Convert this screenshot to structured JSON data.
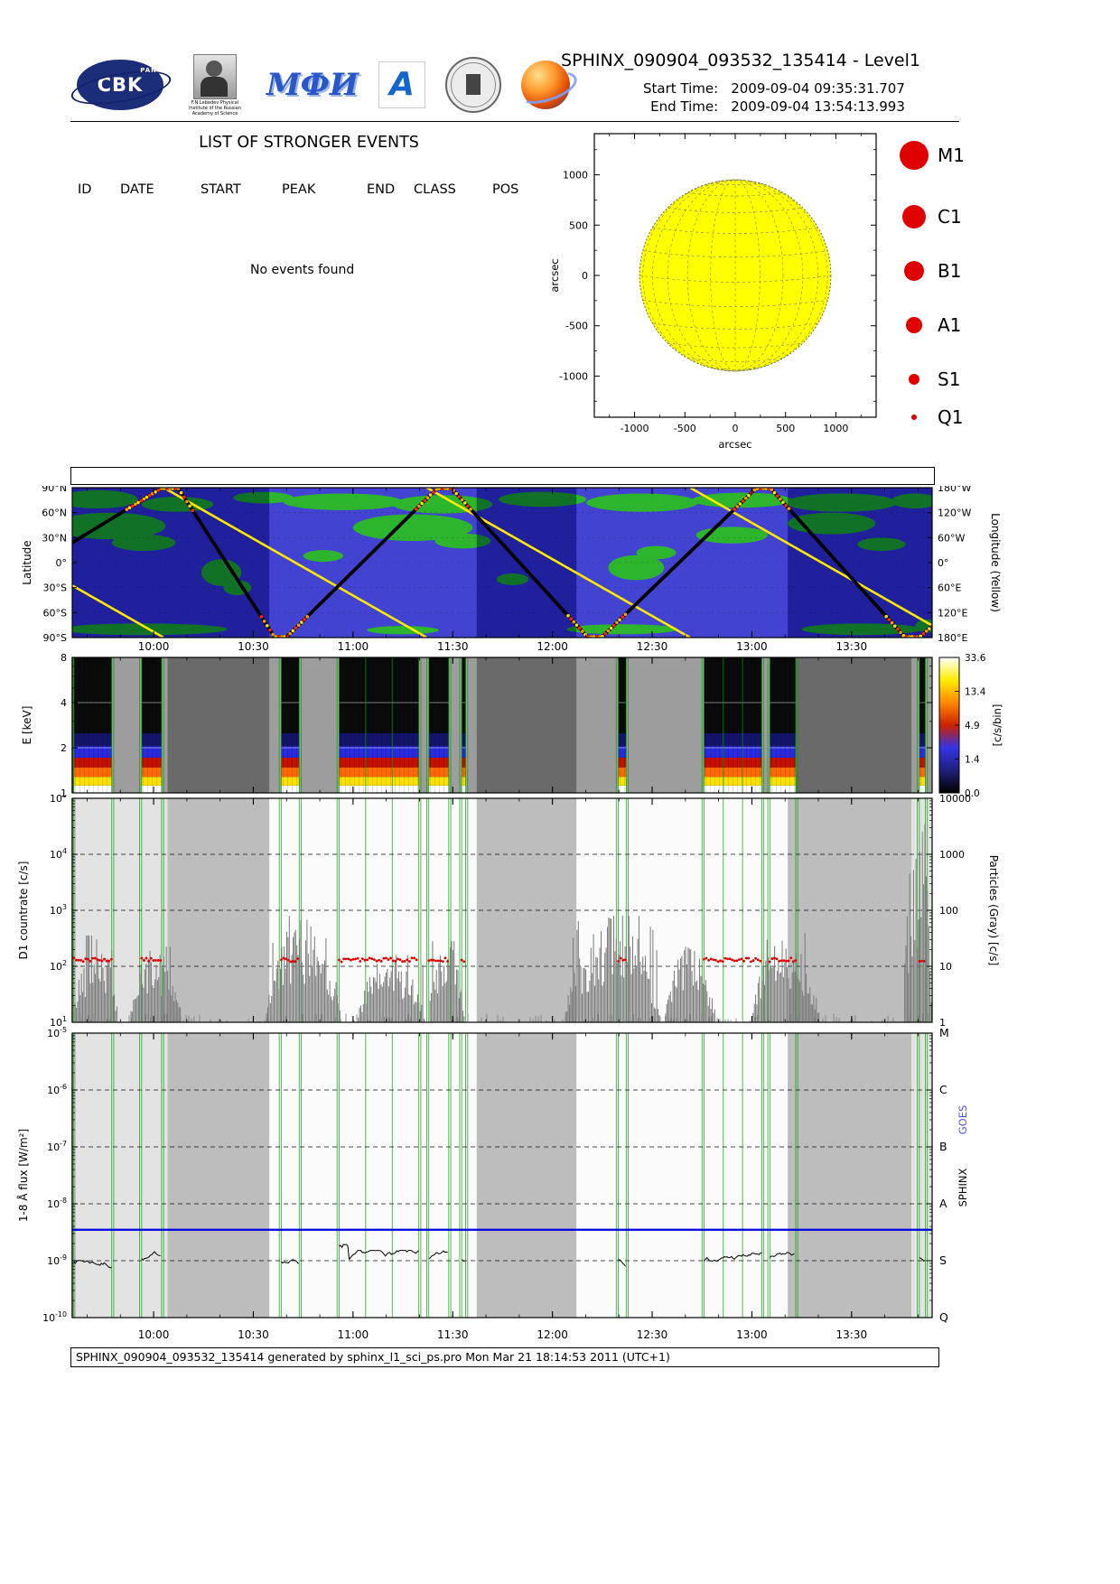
{
  "header": {
    "title": "SPHINX_090904_093532_135414 - Level1",
    "start_label": "Start Time:",
    "start_value": "2009-09-04   09:35:31.707",
    "end_label": "End Time:",
    "end_value": "2009-09-04   13:54:13.993",
    "logo_texts": {
      "cbk": "CBK",
      "cbk_sub": "PAN",
      "mephi": "МФИ",
      "arch": "A",
      "lebedev_caption": "F.N.Lebedev Physical Institute of the Russian Academy of Science"
    }
  },
  "events_list": {
    "title": "LIST OF STRONGER EVENTS",
    "columns": [
      "ID",
      "DATE",
      "START",
      "PEAK",
      "END",
      "CLASS",
      "POS"
    ],
    "empty_message": "No events found"
  },
  "time_axis": {
    "range_hours": [
      9.592,
      13.904
    ],
    "major_hours": [
      10,
      10.5,
      11,
      11.5,
      12,
      12.5,
      13,
      13.5
    ],
    "major_ticks": [
      "10:00",
      "10:30",
      "11:00",
      "11:30",
      "12:00",
      "12:30",
      "13:00",
      "13:30"
    ]
  },
  "sun_intervals": [
    [
      9.6,
      9.79
    ],
    [
      9.94,
      10.04
    ],
    [
      10.64,
      10.73
    ],
    [
      10.93,
      11.33
    ],
    [
      11.38,
      11.48
    ],
    [
      11.545,
      11.565
    ],
    [
      12.33,
      12.37
    ],
    [
      12.76,
      13.05
    ],
    [
      13.09,
      13.22
    ],
    [
      13.84,
      13.87
    ]
  ],
  "day_bands": [
    [
      9.61,
      10.07,
      "lt"
    ],
    [
      10.58,
      11.62,
      "wh"
    ],
    [
      12.12,
      13.18,
      "wh"
    ],
    [
      13.8,
      13.904,
      "lt"
    ]
  ],
  "chart_data": [
    {
      "id": "solar-disk",
      "type": "scatter",
      "xlabel": "arcsec",
      "ylabel": "arcsec",
      "tick_vals": [
        -1000,
        -500,
        0,
        500,
        1000
      ],
      "xtick_labels": [
        "-1000",
        "-500",
        "0",
        "500",
        "1000"
      ],
      "ytick_labels": [
        "-1000",
        "-500",
        "0",
        "500",
        "1000"
      ],
      "xlim": [
        -1400,
        1400
      ],
      "disk": {
        "radius": 950,
        "color": "#ffff00",
        "grid_color": "#8f8f55"
      },
      "flare_events": [],
      "legend": {
        "color": "#e00000",
        "ys": [
          32,
          100,
          160,
          220,
          280,
          322
        ],
        "entries": [
          {
            "label": "M1",
            "r": 16
          },
          {
            "label": "C1",
            "r": 13
          },
          {
            "label": "B1",
            "r": 11
          },
          {
            "label": "A1",
            "r": 9
          },
          {
            "label": "S1",
            "r": 6
          },
          {
            "label": "Q1",
            "r": 3
          }
        ]
      }
    },
    {
      "id": "orbit-map",
      "type": "line",
      "ylabel_left": "Latitude",
      "ylabel_right": "Longitude (Yellow)",
      "lat_ticks": [
        "90°N",
        "60°N",
        "30°N",
        "0°",
        "30°S",
        "60°S",
        "90°S"
      ],
      "lon_ticks": [
        "180°W",
        "120°W",
        "60°W",
        "0°",
        "60°E",
        "120°E",
        "180°E"
      ],
      "ocean_color": "#2e2ecc",
      "land_color": "#17ad17",
      "night_shade": "rgba(5,5,70,0.35)",
      "day_bands": [
        [
          10.58,
          11.62
        ],
        [
          12.12,
          13.18
        ]
      ],
      "track": {
        "color": "#000000",
        "belt_colors": [
          "#ff2a00",
          "#ff9900",
          "#ffe000"
        ],
        "vertices": [
          [
            9.592,
            22
          ],
          [
            10.1,
            90
          ],
          [
            10.63,
            -90
          ],
          [
            11.46,
            90
          ],
          [
            12.21,
            -90
          ],
          [
            13.06,
            90
          ],
          [
            13.8,
            -90
          ],
          [
            13.904,
            -70
          ]
        ]
      },
      "longitude_curve": {
        "color": "#ffe800",
        "start_lon_deg_east": 55,
        "wrap_period_hours": 1.32
      },
      "land_blobs": [
        [
          9.72,
          76,
          0.2,
          11
        ],
        [
          10.12,
          70,
          0.18,
          9
        ],
        [
          10.55,
          78,
          0.15,
          7
        ],
        [
          10.95,
          73,
          0.3,
          10
        ],
        [
          11.45,
          70,
          0.25,
          11
        ],
        [
          11.95,
          76,
          0.22,
          9
        ],
        [
          12.45,
          72,
          0.28,
          11
        ],
        [
          12.95,
          75,
          0.25,
          9
        ],
        [
          13.45,
          72,
          0.28,
          11
        ],
        [
          13.82,
          74,
          0.12,
          9
        ],
        [
          9.78,
          44,
          0.28,
          16
        ],
        [
          9.95,
          24,
          0.16,
          10
        ],
        [
          10.34,
          -12,
          0.1,
          16
        ],
        [
          10.42,
          -30,
          0.07,
          9
        ],
        [
          10.85,
          8,
          0.1,
          7
        ],
        [
          11.3,
          42,
          0.3,
          16
        ],
        [
          11.55,
          26,
          0.14,
          9
        ],
        [
          11.8,
          -20,
          0.08,
          7
        ],
        [
          12.42,
          -6,
          0.14,
          15
        ],
        [
          12.52,
          12,
          0.1,
          8
        ],
        [
          12.9,
          33,
          0.18,
          10
        ],
        [
          13.4,
          47,
          0.22,
          13
        ],
        [
          13.65,
          22,
          0.12,
          8
        ],
        [
          9.95,
          -80,
          0.42,
          7
        ],
        [
          11.25,
          -81,
          0.18,
          5
        ],
        [
          12.35,
          -80,
          0.28,
          6
        ],
        [
          13.55,
          -80,
          0.3,
          7
        ],
        [
          13.88,
          -76,
          0.06,
          8
        ]
      ]
    },
    {
      "id": "spectrogram",
      "type": "heatmap",
      "ylabel": "E [keV]",
      "ytick_vals": [
        8,
        4,
        2,
        1
      ],
      "ytick_labels": [
        "8",
        "4",
        "2",
        "1"
      ],
      "e_range": [
        1,
        8
      ],
      "bg_night": "#6a6a6a",
      "bg_day": "#9d9d9d",
      "column_bands": [
        {
          "e": [
            1.0,
            1.12
          ],
          "color": "#ffffff"
        },
        {
          "e": [
            1.12,
            1.28
          ],
          "color": "#ffe100"
        },
        {
          "e": [
            1.28,
            1.48
          ],
          "color": "#ff6a00"
        },
        {
          "e": [
            1.48,
            1.72
          ],
          "color": "#c41000"
        },
        {
          "e": [
            1.72,
            2.05
          ],
          "color": "#2a2adf"
        },
        {
          "e": [
            2.05,
            2.5
          ],
          "color": "#14146a"
        }
      ],
      "colorbar": {
        "ticks": [
          "33.6",
          "13.4",
          "4.9",
          "1.4",
          "0.0"
        ],
        "label": "[c/s/bin]",
        "stops": [
          "#000000",
          "#20207a",
          "#3333e8",
          "#cc2200",
          "#ff8800",
          "#ffee00",
          "#ffffff"
        ]
      }
    },
    {
      "id": "d1-countrate",
      "type": "line",
      "ylabel": "D1 countrate [c/s]",
      "right_label": "Particles (Gray) [c/s]",
      "left_decades": [
        5,
        4,
        3,
        2,
        1
      ],
      "left_tick_exps": [
        "5",
        "4",
        "3",
        "2",
        "1"
      ],
      "right_tick_labels": [
        "10000",
        "1000",
        "100",
        "10",
        "1"
      ],
      "bg_night": "#bdbdbd",
      "red_level_cps": 130,
      "red_color": "#dd0000",
      "gray_color": "#787878",
      "green_line_color": "#00a000",
      "particle_bursts": [
        [
          9.6,
          9.82,
          2.55
        ],
        [
          9.88,
          10.14,
          2.35
        ],
        [
          10.56,
          10.94,
          2.9
        ],
        [
          11.02,
          11.36,
          2.2
        ],
        [
          11.38,
          11.56,
          2.45
        ],
        [
          12.06,
          12.54,
          2.9
        ],
        [
          12.56,
          12.82,
          2.35
        ],
        [
          13.0,
          13.34,
          2.6
        ],
        [
          13.76,
          13.904,
          4.7
        ]
      ]
    },
    {
      "id": "flux",
      "type": "line",
      "ylabel": "1-8 Å flux [W/m²]",
      "decades": [
        -5,
        -6,
        -7,
        -8,
        -9,
        -10
      ],
      "left_tick_exps": [
        "-5",
        "-6",
        "-7",
        "-8",
        "-9",
        "-10"
      ],
      "goes_classes": [
        "M",
        "C",
        "B",
        "A",
        "S",
        "Q"
      ],
      "right_side_labels": [
        {
          "text": "SPHINX",
          "color": "#000000"
        },
        {
          "text": "GOES",
          "color": "#5050ff"
        }
      ],
      "bg_night": "#bdbdbd",
      "blue_line_flux": 3.5e-09,
      "trace_flux": 1.05e-09,
      "trace_color": "#000000",
      "blue_color": "#0000dd"
    }
  ],
  "footer": {
    "text": "SPHINX_090904_093532_135414 generated by sphinx_l1_sci_ps.pro Mon Mar 21 18:14:53 2011 (UTC+1)"
  }
}
